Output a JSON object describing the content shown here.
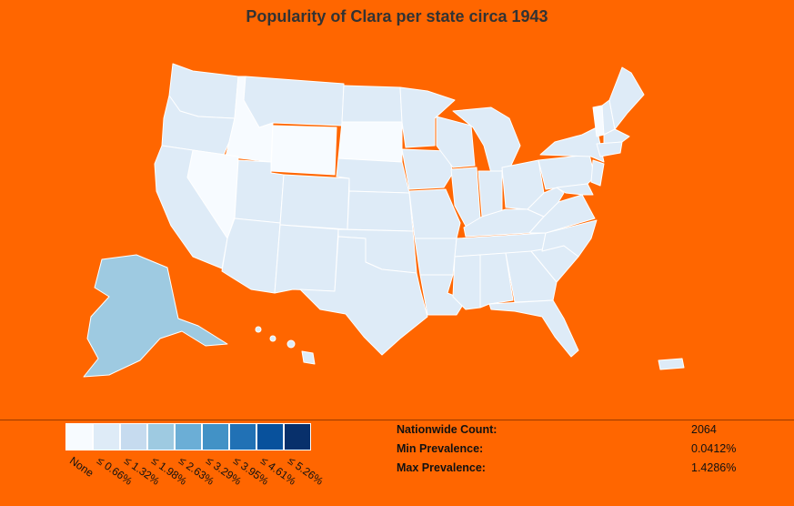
{
  "title": "Popularity of Clara per state circa 1943",
  "colors": {
    "background": "#FF6600",
    "state_border": "#ffffff",
    "light": "#F7FBFF",
    "base": "#DEEBF7",
    "medium": "#9ECAE1"
  },
  "legend": {
    "bins": [
      {
        "label": "None",
        "color": "#F7FBFF"
      },
      {
        "label": "≤ 0.66%",
        "color": "#DEEBF7"
      },
      {
        "label": "≤ 1.32%",
        "color": "#C6DBEF"
      },
      {
        "label": "≤ 1.98%",
        "color": "#9ECAE1"
      },
      {
        "label": "≤ 2.63%",
        "color": "#6BAED6"
      },
      {
        "label": "≤ 3.29%",
        "color": "#4292C6"
      },
      {
        "label": "≤ 3.95%",
        "color": "#2171B5"
      },
      {
        "label": "≤ 4.61%",
        "color": "#08519C"
      },
      {
        "label": "≤ 5.26%",
        "color": "#08306B"
      }
    ]
  },
  "stats": {
    "nationwide_count_label": "Nationwide Count:",
    "nationwide_count_value": "2064",
    "min_prevalence_label": "Min Prevalence:",
    "min_prevalence_value": "0.0412%",
    "max_prevalence_label": "Max Prevalence:",
    "max_prevalence_value": "1.4286%"
  }
}
